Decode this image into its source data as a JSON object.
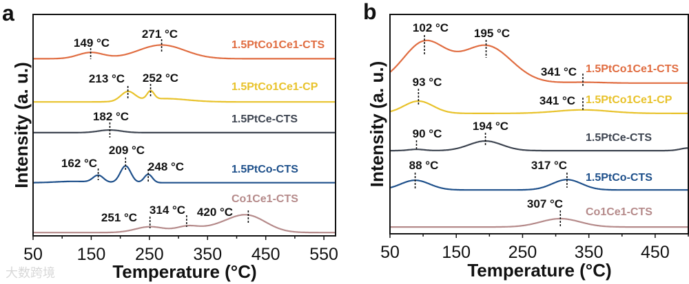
{
  "watermark": "大数跨境",
  "chart_data": [
    {
      "panel": "a",
      "type": "line",
      "xlabel": "Temperature (°C)",
      "ylabel": "Intensity (a. u.)",
      "xlim": [
        50,
        570
      ],
      "ylim": [
        0,
        100
      ],
      "xticks": [
        50,
        150,
        250,
        350,
        450,
        550
      ],
      "grid": false,
      "series": [
        {
          "name": "1.5PtCo1Ce1-CTS",
          "color": "#e06c40",
          "baseline": 80,
          "peaks": [
            {
              "x": 149,
              "h": 2.8,
              "w": 22
            },
            {
              "x": 271,
              "h": 6.2,
              "w": 40
            }
          ],
          "annotations": [
            "149 °C",
            "271 °C"
          ]
        },
        {
          "name": "1.5PtCo1Ce1-CP",
          "color": "#e8c22a",
          "baseline": 60.5,
          "peaks": [
            {
              "x": 213,
              "h": 4.3,
              "w": 12
            },
            {
              "x": 252,
              "h": 3.8,
              "w": 6
            },
            {
              "x": 275,
              "h": 1.5,
              "w": 40
            }
          ],
          "annotations": [
            "213 °C",
            "252 °C"
          ]
        },
        {
          "name": "1.5PtCe-CTS",
          "color": "#3d4450",
          "baseline": 46.6,
          "peaks": [
            {
              "x": 182,
              "h": 1.2,
              "w": 20
            }
          ],
          "annotations": [
            "182 °C"
          ]
        },
        {
          "name": "1.5PtCo-CTS",
          "color": "#1d4f8a",
          "baseline": 24,
          "peaks": [
            {
              "x": 162,
              "h": 3.2,
              "w": 9
            },
            {
              "x": 209,
              "h": 7.6,
              "w": 9
            },
            {
              "x": 248,
              "h": 3.8,
              "w": 7
            },
            {
              "x": 120,
              "h": 0.6,
              "w": 30
            }
          ],
          "annotations": [
            "162 °C",
            "209 °C",
            "248 °C"
          ]
        },
        {
          "name": "Co1Ce1-CTS",
          "color": "#b58a8a",
          "baseline": 1.5,
          "peaks": [
            {
              "x": 251,
              "h": 2.6,
              "w": 25
            },
            {
              "x": 314,
              "h": 2.0,
              "w": 18
            },
            {
              "x": 420,
              "h": 6.8,
              "w": 32
            },
            {
              "x": 370,
              "h": 2.5,
              "w": 40
            }
          ],
          "annotations": [
            "251 °C",
            "314 °C",
            "420 °C"
          ]
        }
      ]
    },
    {
      "panel": "b",
      "type": "line",
      "xlabel": "Temperature (°C)",
      "ylabel": "Intensity (a. u.)",
      "xlim": [
        50,
        500
      ],
      "ylim": [
        0,
        100
      ],
      "xticks": [
        50,
        150,
        250,
        350,
        450
      ],
      "grid": false,
      "series": [
        {
          "name": "1.5PtCo1Ce1-CTS",
          "color": "#e06c40",
          "baseline": 68.7,
          "peaks": [
            {
              "x": 102,
              "h": 18.5,
              "w": 32
            },
            {
              "x": 195,
              "h": 17,
              "w": 38
            },
            {
              "x": 341,
              "h": 0.4,
              "w": 30
            }
          ],
          "annotations": [
            "102 °C",
            "195 °C",
            "341 °C"
          ]
        },
        {
          "name": "1.5PtCo1Ce1-CP",
          "color": "#e8c22a",
          "baseline": 54.9,
          "peaks": [
            {
              "x": 93,
              "h": 5.6,
              "w": 22
            },
            {
              "x": 341,
              "h": 1.6,
              "w": 40
            }
          ],
          "annotations": [
            "93 °C",
            "341 °C"
          ]
        },
        {
          "name": "1.5PtCe-CTS",
          "color": "#3d4450",
          "baseline": 37.9,
          "peaks": [
            {
              "x": 90,
              "h": 0.6,
              "w": 12
            },
            {
              "x": 194,
              "h": 4.4,
              "w": 25
            },
            {
              "x": 500,
              "h": 1.2,
              "w": 12
            }
          ],
          "annotations": [
            "90 °C",
            "194 °C"
          ]
        },
        {
          "name": "1.5PtCo-CTS",
          "color": "#1d4f8a",
          "baseline": 20,
          "peaks": [
            {
              "x": 88,
              "h": 4.4,
              "w": 22
            },
            {
              "x": 317,
              "h": 4.7,
              "w": 22
            }
          ],
          "annotations": [
            "88 °C",
            "317 °C"
          ]
        },
        {
          "name": "Co1Ce1-CTS",
          "color": "#b58a8a",
          "baseline": 3.1,
          "peaks": [
            {
              "x": 307,
              "h": 3.8,
              "w": 30
            }
          ],
          "annotations": [
            "307 °C"
          ]
        }
      ]
    }
  ],
  "panel_labels": [
    "a",
    "b"
  ]
}
